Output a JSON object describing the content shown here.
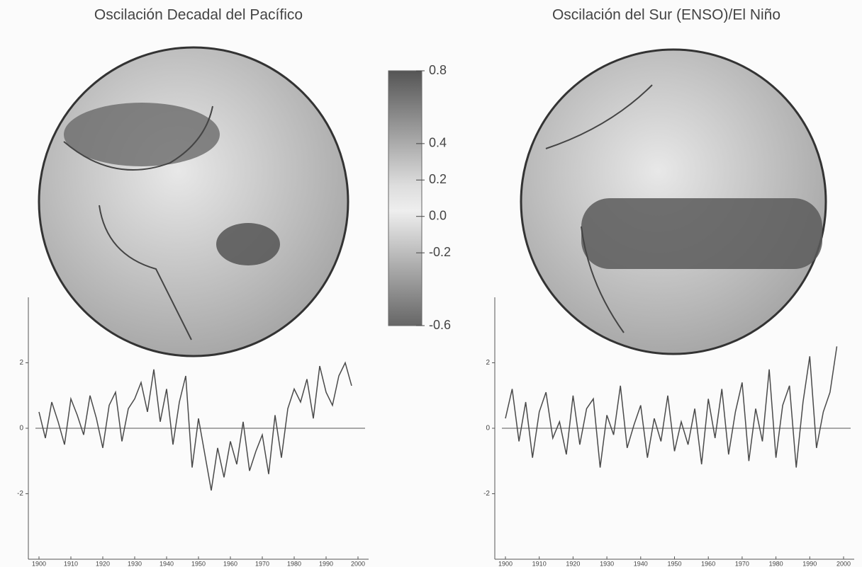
{
  "chart_data": [
    {
      "type": "colorbar",
      "ylim": [
        -0.6,
        0.8
      ],
      "yticks": [
        0.8,
        0.4,
        0.2,
        {
          "value": 0,
          "label": "0.0"
        },
        -0.2,
        -0.6
      ]
    },
    {
      "type": "line",
      "title": "Oscilación Decadal del Pacífico",
      "x": [
        1900,
        1902,
        1904,
        1906,
        1908,
        1910,
        1912,
        1914,
        1916,
        1918,
        1920,
        1922,
        1924,
        1926,
        1928,
        1930,
        1932,
        1934,
        1936,
        1938,
        1940,
        1942,
        1944,
        1946,
        1948,
        1950,
        1952,
        1954,
        1956,
        1958,
        1960,
        1962,
        1964,
        1966,
        1968,
        1970,
        1972,
        1974,
        1976,
        1978,
        1980,
        1982,
        1984,
        1986,
        1988,
        1990,
        1992,
        1994,
        1996,
        1998
      ],
      "series": [
        {
          "color": "#4a4a4a",
          "values": [
            0.5,
            -0.3,
            0.8,
            0.2,
            -0.5,
            0.9,
            0.4,
            -0.2,
            1.0,
            0.3,
            -0.6,
            0.7,
            1.1,
            -0.4,
            0.6,
            0.9,
            1.4,
            0.5,
            1.8,
            0.2,
            1.2,
            -0.5,
            0.8,
            1.6,
            -1.2,
            0.3,
            -0.8,
            -1.9,
            -0.6,
            -1.5,
            -0.4,
            -1.1,
            0.2,
            -1.3,
            -0.7,
            -0.2,
            -1.4,
            0.4,
            -0.9,
            0.6,
            1.2,
            0.8,
            1.5,
            0.3,
            1.9,
            1.1,
            0.7,
            1.6,
            2.0,
            1.3
          ]
        }
      ],
      "xlim": [
        1900,
        2000
      ],
      "xticks": [
        1900,
        1910,
        1920,
        1930,
        1940,
        1950,
        1960,
        1970,
        1980,
        1990,
        2000
      ],
      "ylim": [
        -4,
        4
      ],
      "yticks": [
        2,
        0,
        -2
      ]
    },
    {
      "type": "line",
      "title": "Oscilación del Sur (ENSO)/El Niño",
      "x": [
        1900,
        1902,
        1904,
        1906,
        1908,
        1910,
        1912,
        1914,
        1916,
        1918,
        1920,
        1922,
        1924,
        1926,
        1928,
        1930,
        1932,
        1934,
        1936,
        1938,
        1940,
        1942,
        1944,
        1946,
        1948,
        1950,
        1952,
        1954,
        1956,
        1958,
        1960,
        1962,
        1964,
        1966,
        1968,
        1970,
        1972,
        1974,
        1976,
        1978,
        1980,
        1982,
        1984,
        1986,
        1988,
        1990,
        1992,
        1994,
        1996,
        1998
      ],
      "series": [
        {
          "color": "#4a4a4a",
          "values": [
            0.3,
            1.2,
            -0.4,
            0.8,
            -0.9,
            0.5,
            1.1,
            -0.3,
            0.2,
            -0.8,
            1.0,
            -0.5,
            0.6,
            0.9,
            -1.2,
            0.4,
            -0.2,
            1.3,
            -0.6,
            0.1,
            0.7,
            -0.9,
            0.3,
            -0.4,
            1.0,
            -0.7,
            0.2,
            -0.5,
            0.6,
            -1.1,
            0.9,
            -0.3,
            1.2,
            -0.8,
            0.5,
            1.4,
            -1.0,
            0.6,
            -0.4,
            1.8,
            -0.9,
            0.7,
            1.3,
            -1.2,
            0.8,
            2.2,
            -0.6,
            0.5,
            1.1,
            2.5
          ]
        }
      ],
      "xlim": [
        1900,
        2000
      ],
      "xticks": [
        1900,
        1910,
        1920,
        1930,
        1940,
        1950,
        1960,
        1970,
        1980,
        1990,
        2000
      ],
      "ylim": [
        -4,
        4
      ],
      "yticks": [
        2,
        0,
        -2
      ]
    }
  ]
}
